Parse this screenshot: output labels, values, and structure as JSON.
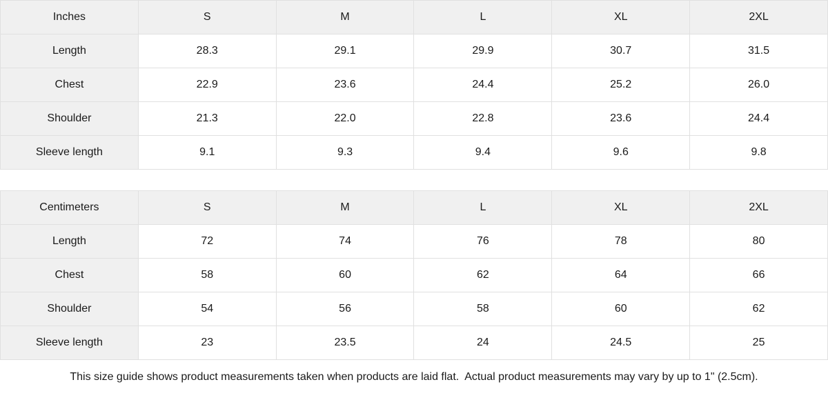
{
  "chart_data": [
    {
      "type": "table",
      "title": "Inches",
      "columns": [
        "Inches",
        "S",
        "M",
        "L",
        "XL",
        "2XL"
      ],
      "rows": [
        [
          "Length",
          "28.3",
          "29.1",
          "29.9",
          "30.7",
          "31.5"
        ],
        [
          "Chest",
          "22.9",
          "23.6",
          "24.4",
          "25.2",
          "26.0"
        ],
        [
          "Shoulder",
          "21.3",
          "22.0",
          "22.8",
          "23.6",
          "24.4"
        ],
        [
          "Sleeve length",
          "9.1",
          "9.3",
          "9.4",
          "9.6",
          "9.8"
        ]
      ]
    },
    {
      "type": "table",
      "title": "Centimeters",
      "columns": [
        "Centimeters",
        "S",
        "M",
        "L",
        "XL",
        "2XL"
      ],
      "rows": [
        [
          "Length",
          "72",
          "74",
          "76",
          "78",
          "80"
        ],
        [
          "Chest",
          "58",
          "60",
          "62",
          "64",
          "66"
        ],
        [
          "Shoulder",
          "54",
          "56",
          "58",
          "60",
          "62"
        ],
        [
          "Sleeve length",
          "23",
          "23.5",
          "24",
          "24.5",
          "25"
        ]
      ]
    }
  ],
  "footer": {
    "note": "This size guide shows product measurements taken when products are laid flat.  Actual product measurements may vary by up to 1\" (2.5cm)."
  },
  "colors": {
    "header_bg": "#f0f0f0",
    "border": "#e0e0e0",
    "text": "#1a1a1a",
    "background": "#ffffff"
  }
}
